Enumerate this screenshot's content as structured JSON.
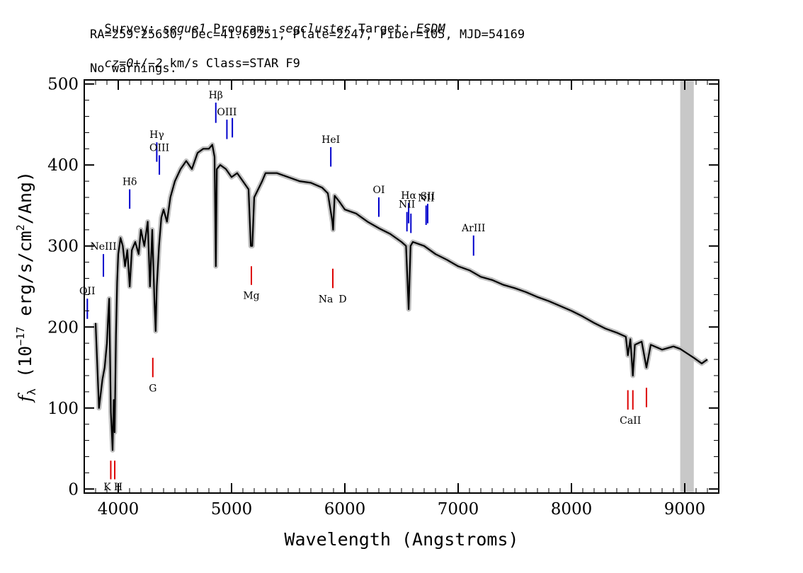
{
  "header": {
    "survey_label": "Survey:",
    "survey": "segue1",
    "program_label": "Program:",
    "program": "segcluster",
    "target_label": "Target:",
    "target": "ESDM",
    "line2": "RA=259.25630, Dec=41.69251, Plate=2247, Fiber=105, MJD=54169",
    "redshift": "cz=0+/−2",
    "redshift_unit": "km/s",
    "class_text": "Class=STAR F9",
    "warnings": "No warnings."
  },
  "chart_data": {
    "type": "line",
    "xlabel": "Wavelength (Angstroms)",
    "ylabel_prefix": "f",
    "ylabel_sub": "λ",
    "ylabel_text": " (10",
    "ylabel_exp": "−17",
    "ylabel_text2": " erg/s/cm",
    "ylabel_exp2": "2",
    "ylabel_text3": "/Ang)",
    "xlim": [
      3700,
      9300
    ],
    "ylim": [
      -5,
      505
    ],
    "xticks": [
      4000,
      5000,
      6000,
      7000,
      8000,
      9000
    ],
    "yticks": [
      0,
      100,
      200,
      300,
      400,
      500
    ],
    "masked_region": [
      8960,
      9080
    ],
    "series": [
      {
        "color": "#000000",
        "error_band_color": "#c0c0c0",
        "x": [
          3800,
          3830,
          3860,
          3880,
          3900,
          3910,
          3920,
          3935,
          3950,
          3960,
          3968,
          3980,
          3990,
          4000,
          4020,
          4040,
          4060,
          4080,
          4101,
          4120,
          4150,
          4180,
          4200,
          4230,
          4260,
          4280,
          4300,
          4320,
          4330,
          4340,
          4360,
          4380,
          4400,
          4430,
          4460,
          4500,
          4550,
          4600,
          4650,
          4700,
          4750,
          4800,
          4830,
          4850,
          4861,
          4870,
          4900,
          4950,
          5000,
          5050,
          5100,
          5150,
          5170,
          5183,
          5200,
          5270,
          5300,
          5400,
          5500,
          5600,
          5700,
          5800,
          5850,
          5890,
          5896,
          5910,
          5950,
          6000,
          6100,
          6200,
          6300,
          6400,
          6500,
          6540,
          6563,
          6580,
          6600,
          6700,
          6800,
          6900,
          7000,
          7100,
          7200,
          7300,
          7400,
          7500,
          7600,
          7700,
          7800,
          7900,
          8000,
          8100,
          8200,
          8300,
          8400,
          8480,
          8498,
          8520,
          8542,
          8560,
          8620,
          8662,
          8700,
          8800,
          8900,
          8960,
          9080,
          9150,
          9200
        ],
        "y": [
          205,
          100,
          135,
          150,
          180,
          210,
          235,
          95,
          48,
          110,
          70,
          190,
          255,
          290,
          310,
          300,
          275,
          295,
          250,
          295,
          305,
          290,
          320,
          300,
          330,
          250,
          320,
          230,
          195,
          250,
          300,
          335,
          345,
          330,
          360,
          380,
          395,
          405,
          395,
          415,
          420,
          420,
          425,
          410,
          275,
          395,
          400,
          395,
          385,
          390,
          380,
          370,
          300,
          300,
          360,
          380,
          390,
          390,
          385,
          380,
          378,
          372,
          365,
          330,
          320,
          362,
          355,
          345,
          340,
          330,
          322,
          315,
          305,
          300,
          222,
          300,
          305,
          300,
          290,
          283,
          275,
          270,
          262,
          258,
          252,
          248,
          243,
          237,
          232,
          226,
          220,
          213,
          205,
          198,
          193,
          188,
          165,
          185,
          140,
          178,
          182,
          150,
          178,
          172,
          176,
          173,
          162,
          155,
          160
        ]
      }
    ],
    "emission_lines": [
      {
        "label": "OII",
        "x": 3727,
        "y_top": 235,
        "y_bottom": 210
      },
      {
        "label": "NeIII",
        "x": 3869,
        "y_top": 290,
        "y_bottom": 262
      },
      {
        "label": "Hδ",
        "x": 4101,
        "y_top": 370,
        "y_bottom": 346
      },
      {
        "label": "Hγ",
        "x": 4340,
        "y_top": 428,
        "y_bottom": 404
      },
      {
        "label": "OIII",
        "x": 4363,
        "y_top": 412,
        "y_bottom": 388
      },
      {
        "label": "Hβ",
        "x": 4861,
        "y_top": 477,
        "y_bottom": 452
      },
      {
        "label": "OIII",
        "x": 4959,
        "y_top": 456,
        "y_bottom": 432
      },
      {
        "label": "",
        "x": 5007,
        "y_top": 458,
        "y_bottom": 434
      },
      {
        "label": "HeI",
        "x": 5876,
        "y_top": 422,
        "y_bottom": 398
      },
      {
        "label": "OI",
        "x": 6300,
        "y_top": 360,
        "y_bottom": 336
      },
      {
        "label": "NII",
        "x": 6548,
        "y_top": 342,
        "y_bottom": 318
      },
      {
        "label": "Hα",
        "x": 6563,
        "y_top": 353,
        "y_bottom": 328
      },
      {
        "label": "",
        "x": 6583,
        "y_top": 340,
        "y_bottom": 316
      },
      {
        "label": "NII",
        "x": 6717,
        "y_top": 350,
        "y_bottom": 326
      },
      {
        "label": "SII",
        "x": 6731,
        "y_top": 352,
        "y_bottom": 328
      },
      {
        "label": "ArIII",
        "x": 7136,
        "y_top": 313,
        "y_bottom": 288
      }
    ],
    "absorption_lines": [
      {
        "label": "K",
        "x": 3934,
        "y_top": 35,
        "y_bottom": 12
      },
      {
        "label": "H",
        "x": 3969,
        "y_top": 35,
        "y_bottom": 12
      },
      {
        "label": "G",
        "x": 4305,
        "y_top": 162,
        "y_bottom": 138
      },
      {
        "label": "Mg",
        "x": 5175,
        "y_top": 275,
        "y_bottom": 252
      },
      {
        "label": "Na",
        "x": 5894,
        "y_top": 272,
        "y_bottom": 248
      },
      {
        "label": "D",
        "x": 5894,
        "y_top": null,
        "y_bottom": null
      },
      {
        "label": "CaII",
        "x": 8498,
        "y_top": 122,
        "y_bottom": 98
      },
      {
        "label": "",
        "x": 8542,
        "y_top": 122,
        "y_bottom": 98
      },
      {
        "label": "",
        "x": 8662,
        "y_top": 125,
        "y_bottom": 101
      }
    ],
    "colors": {
      "emission": "#0000cc",
      "absorption": "#dd0000",
      "mask": "#c8c8c8",
      "spectrum": "#000000"
    }
  }
}
